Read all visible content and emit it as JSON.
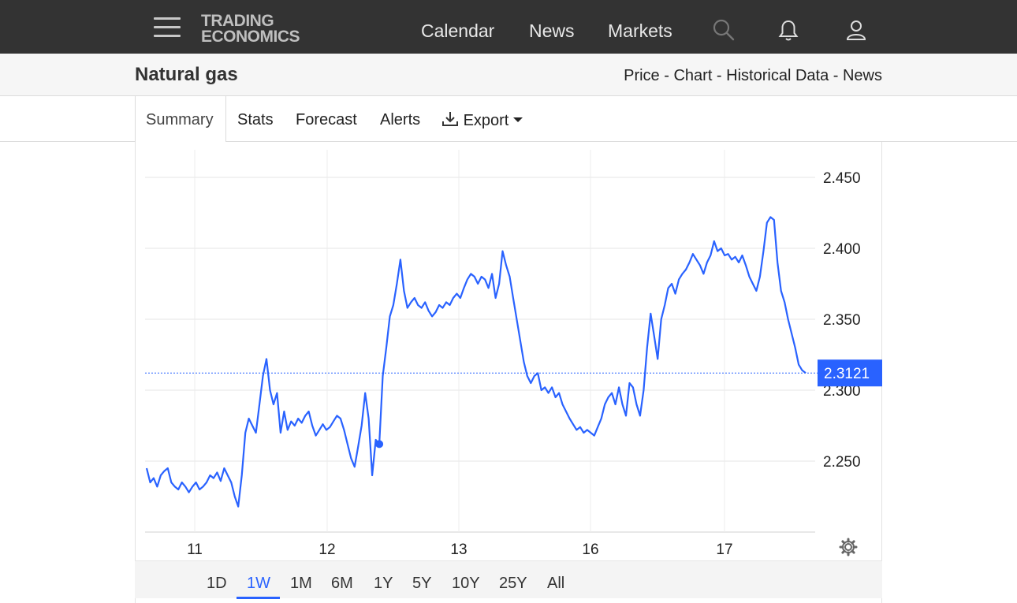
{
  "navbar": {
    "logo_line1": "TRADING",
    "logo_line2": "ECONOMICS",
    "links": [
      "Calendar",
      "News",
      "Markets"
    ],
    "icons": [
      "search-icon",
      "bell-icon",
      "user-icon"
    ]
  },
  "header": {
    "title": "Natural gas",
    "breadcrumb": [
      "Price",
      "Chart",
      "Historical Data",
      "News"
    ],
    "separator": " - "
  },
  "tabs": {
    "items": [
      "Summary",
      "Stats",
      "Forecast",
      "Alerts",
      "Export"
    ],
    "active": "Summary"
  },
  "range": {
    "items": [
      "1D",
      "1W",
      "1M",
      "6M",
      "1Y",
      "5Y",
      "10Y",
      "25Y",
      "All"
    ],
    "active": "1W"
  },
  "colors": {
    "line": "#2962ff",
    "navbar": "#333333",
    "price_label_bg": "#2962ff"
  },
  "chart_data": {
    "type": "line",
    "x_labels": [
      "11",
      "12",
      "13",
      "16",
      "17"
    ],
    "yticks": [
      "2.250",
      "2.300",
      "2.350",
      "2.400",
      "2.450"
    ],
    "ylim": [
      2.2,
      2.475
    ],
    "last_price": "2.3121",
    "last_value": 2.3121,
    "grid": true,
    "series": [
      {
        "values": [
          2.245,
          2.235,
          2.238,
          2.232,
          2.24,
          2.243,
          2.245,
          2.235,
          2.232,
          2.23,
          2.235,
          2.232,
          2.228,
          2.232,
          2.235,
          2.23,
          2.232,
          2.235,
          2.24,
          2.238,
          2.242,
          2.236,
          2.245,
          2.24,
          2.235,
          2.225,
          2.218,
          2.24,
          2.27,
          2.28,
          2.275,
          2.27,
          2.29,
          2.31,
          2.322,
          2.3,
          2.29,
          2.298,
          2.27,
          2.285,
          2.272,
          2.278,
          2.275,
          2.28,
          2.277,
          2.282,
          2.285,
          2.275,
          2.268,
          2.272,
          2.276,
          2.272,
          2.274,
          2.278,
          2.282,
          2.28,
          2.272,
          2.262,
          2.252,
          2.246,
          2.26,
          2.275,
          2.298,
          2.28,
          2.24,
          2.265,
          2.262,
          2.31,
          2.33,
          2.352,
          2.36,
          2.375,
          2.392,
          2.37,
          2.358,
          2.362,
          2.365,
          2.36,
          2.358,
          2.362,
          2.356,
          2.352,
          2.355,
          2.36,
          2.358,
          2.362,
          2.36,
          2.365,
          2.368,
          2.365,
          2.372,
          2.378,
          2.382,
          2.38,
          2.375,
          2.38,
          2.378,
          2.372,
          2.382,
          2.365,
          2.375,
          2.398,
          2.388,
          2.38,
          2.365,
          2.35,
          2.335,
          2.32,
          2.31,
          2.305,
          2.31,
          2.312,
          2.3,
          2.302,
          2.298,
          2.302,
          2.295,
          2.298,
          2.29,
          2.285,
          2.28,
          2.276,
          2.272,
          2.274,
          2.27,
          2.272,
          2.27,
          2.268,
          2.274,
          2.28,
          2.29,
          2.295,
          2.298,
          2.29,
          2.302,
          2.29,
          2.282,
          2.305,
          2.302,
          2.29,
          2.282,
          2.3,
          2.33,
          2.354,
          2.338,
          2.322,
          2.35,
          2.36,
          2.372,
          2.375,
          2.368,
          2.378,
          2.382,
          2.385,
          2.39,
          2.396,
          2.392,
          2.388,
          2.382,
          2.39,
          2.395,
          2.405,
          2.398,
          2.4,
          2.395,
          2.396,
          2.392,
          2.394,
          2.39,
          2.395,
          2.388,
          2.38,
          2.375,
          2.37,
          2.38,
          2.398,
          2.418,
          2.422,
          2.42,
          2.39,
          2.37,
          2.362,
          2.35,
          2.34,
          2.33,
          2.318,
          2.314,
          2.3121
        ]
      }
    ]
  }
}
